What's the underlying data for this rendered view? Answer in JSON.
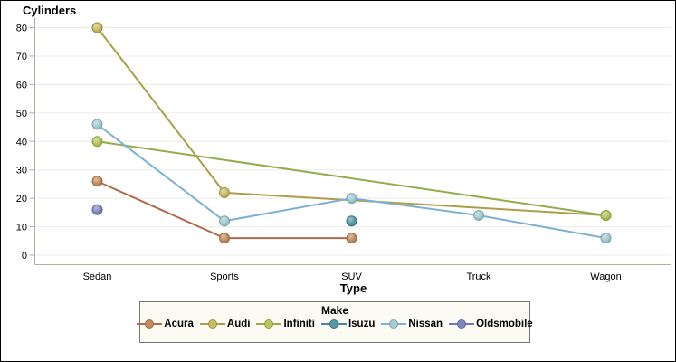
{
  "figure": {
    "y_axis_title": "Cylinders",
    "x_axis_title": "Type"
  },
  "colors": {
    "background": "#ffffff",
    "frame_border": "#000000",
    "axis": "#b2b096",
    "grid": "#ebebe3",
    "tick_label": "#000000",
    "legend_bg": "#fbfbf3",
    "legend_border": "#757575"
  },
  "chart_data": {
    "type": "line",
    "title": "",
    "ylabel": "Cylinders",
    "xlabel": "Type",
    "categories": [
      "Sedan",
      "Sports",
      "SUV",
      "Truck",
      "Wagon"
    ],
    "y_ticks": [
      0,
      10,
      20,
      30,
      40,
      50,
      60,
      70,
      80
    ],
    "ylim": [
      0,
      80
    ],
    "grid": "horizontal",
    "legend_title": "Make",
    "legend_position": "bottom",
    "series": [
      {
        "name": "Acura",
        "values": [
          26,
          6,
          6,
          null,
          null
        ],
        "line_color": "#b26a4d",
        "marker_color": "#c28c5f",
        "marker_stroke": "#9c6c3f"
      },
      {
        "name": "Audi",
        "values": [
          80,
          22,
          null,
          null,
          14
        ],
        "line_color": "#ab9f48",
        "marker_color": "#c7bb68",
        "marker_stroke": "#9d923e"
      },
      {
        "name": "Infiniti",
        "values": [
          40,
          null,
          null,
          null,
          14
        ],
        "line_color": "#93ab4b",
        "marker_color": "#b7c561",
        "marker_stroke": "#8ca03e"
      },
      {
        "name": "Isuzu",
        "values": [
          null,
          null,
          12,
          null,
          null
        ],
        "line_color": "#4a8799",
        "marker_color": "#579aa3",
        "marker_stroke": "#3b7482"
      },
      {
        "name": "Nissan",
        "values": [
          46,
          12,
          20,
          14,
          6
        ],
        "line_color": "#7db1d3",
        "marker_color": "#a4cbd0",
        "marker_stroke": "#79a8b2"
      },
      {
        "name": "Oldsmobile",
        "values": [
          16,
          null,
          null,
          null,
          null
        ],
        "line_color": "#6d79b0",
        "marker_color": "#8089bd",
        "marker_stroke": "#5d689f"
      }
    ]
  }
}
